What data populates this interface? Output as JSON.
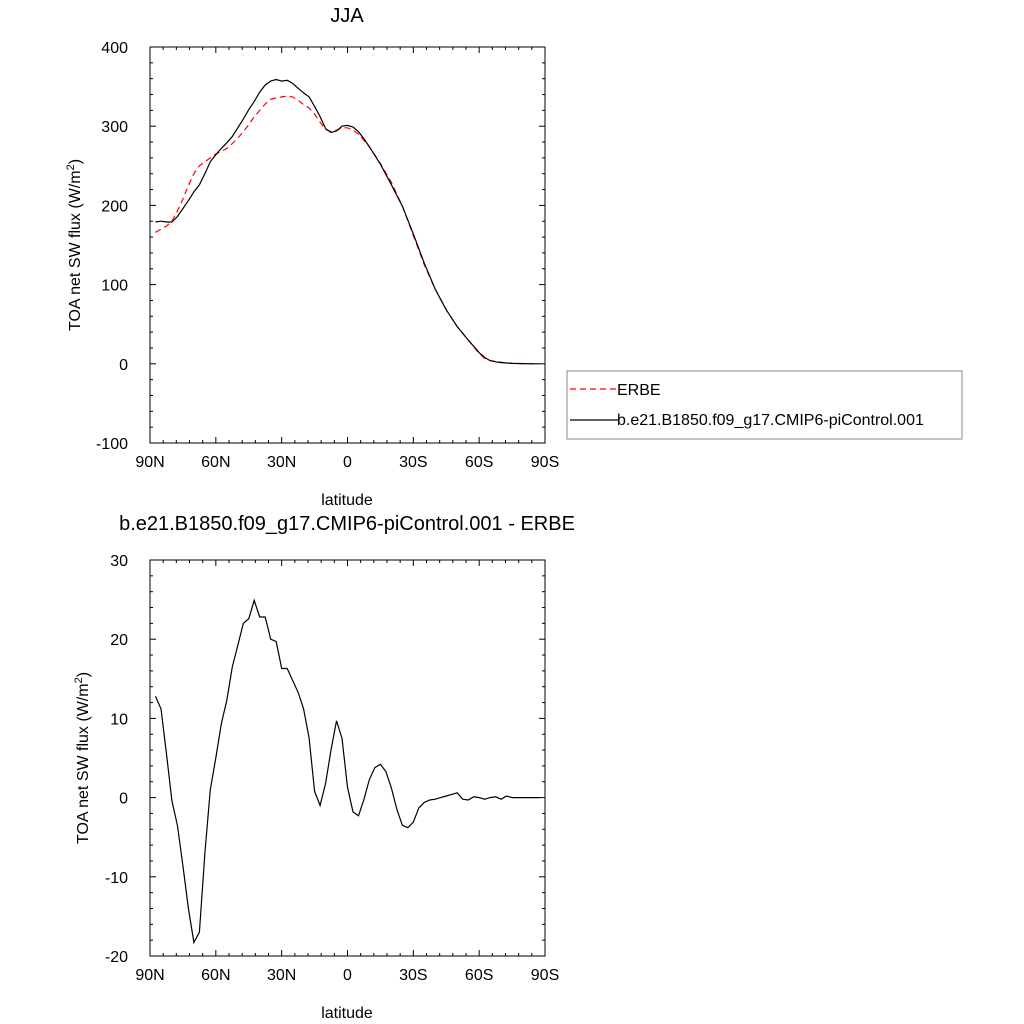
{
  "chart_data": [
    {
      "type": "line",
      "title": "JJA",
      "xlabel": "latitude",
      "ylabel": "TOA net SW flux (W/m",
      "ylabel_sup": "2",
      "ylabel_close": ")",
      "xlim": [
        90,
        -90
      ],
      "ylim": [
        -100,
        400
      ],
      "x_ticks": [
        90,
        60,
        30,
        0,
        -30,
        -60,
        -90
      ],
      "x_tick_labels": [
        "90N",
        "60N",
        "30N",
        "0",
        "30S",
        "60S",
        "90S"
      ],
      "y_ticks": [
        -100,
        0,
        100,
        200,
        300,
        400
      ],
      "y_tick_labels": [
        "-100",
        "0",
        "100",
        "200",
        "300",
        "400"
      ],
      "legend_position": "right",
      "series": [
        {
          "name": "ERBE",
          "color": "#ff0000",
          "dash": "dashed",
          "x": [
            87.5,
            85,
            82.5,
            80,
            77.5,
            75,
            72.5,
            70,
            67.5,
            65,
            62.5,
            60,
            57.5,
            55,
            52.5,
            50,
            47.5,
            45,
            42.5,
            40,
            37.5,
            35,
            32.5,
            30,
            27.5,
            25,
            22.5,
            20,
            17.5,
            15,
            12.5,
            10,
            7.5,
            5,
            2.5,
            0,
            -2.5,
            -5,
            -7.5,
            -10,
            -15,
            -20,
            -25,
            -30,
            -35,
            -40,
            -45,
            -50,
            -55,
            -60,
            -62.5,
            -65,
            -67.5,
            -70,
            -72.5,
            -75,
            -80,
            -85,
            -87.5
          ],
          "values": [
            166,
            170,
            174,
            180,
            193,
            208,
            225,
            240,
            250,
            255,
            260,
            265,
            268,
            272,
            278,
            285,
            293,
            302,
            312,
            320,
            328,
            334,
            336,
            337,
            338,
            337,
            333,
            327,
            323,
            315,
            305,
            296,
            293,
            295,
            298,
            298,
            295,
            290,
            282,
            274,
            253,
            229,
            199,
            162,
            125,
            94,
            68,
            47,
            30,
            13,
            7,
            4,
            3,
            2,
            1,
            0.5,
            0.2,
            0,
            0
          ]
        },
        {
          "name": "b.e21.B1850.f09_g17.CMIP6-piControl.001",
          "color": "#000000",
          "dash": "solid",
          "x": [
            87.5,
            85,
            82.5,
            80,
            77.5,
            75,
            72.5,
            70,
            67.5,
            65,
            62.5,
            60,
            57.5,
            55,
            52.5,
            50,
            47.5,
            45,
            42.5,
            40,
            37.5,
            35,
            32.5,
            30,
            27.5,
            25,
            22.5,
            20,
            17.5,
            15,
            12.5,
            10,
            7.5,
            5,
            2.5,
            0,
            -2.5,
            -5,
            -7.5,
            -10,
            -15,
            -20,
            -25,
            -30,
            -35,
            -40,
            -45,
            -50,
            -55,
            -60,
            -62.5,
            -65,
            -67.5,
            -70,
            -72.5,
            -75,
            -80,
            -85,
            -87.5
          ],
          "values": [
            179,
            180,
            179,
            179,
            186,
            196,
            206,
            217,
            226,
            240,
            255,
            264,
            272,
            279,
            287,
            298,
            309,
            321,
            331,
            343,
            352,
            357,
            359,
            357,
            358,
            354,
            348,
            342,
            337,
            325,
            312,
            297,
            292,
            294,
            300,
            301,
            299,
            293,
            284,
            274,
            252,
            226,
            199,
            164,
            127,
            94,
            68,
            47,
            30,
            14,
            8,
            4,
            2.5,
            1.5,
            1,
            0.5,
            0.2,
            0,
            0
          ]
        }
      ]
    },
    {
      "type": "line",
      "title": "b.e21.B1850.f09_g17.CMIP6-piControl.001 - ERBE",
      "xlabel": "latitude",
      "ylabel": "TOA net SW flux (W/m",
      "ylabel_sup": "2",
      "ylabel_close": ")",
      "xlim": [
        90,
        -90
      ],
      "ylim": [
        -20,
        30
      ],
      "x_ticks": [
        90,
        60,
        30,
        0,
        -30,
        -60,
        -90
      ],
      "x_tick_labels": [
        "90N",
        "60N",
        "30N",
        "0",
        "30S",
        "60S",
        "90S"
      ],
      "y_ticks": [
        -20,
        -10,
        0,
        10,
        20,
        30
      ],
      "y_tick_labels": [
        "-20",
        "-10",
        "0",
        "10",
        "20",
        "30"
      ],
      "series": [
        {
          "color": "#000000",
          "dash": "solid",
          "x": [
            87.5,
            85,
            82.5,
            80,
            77.5,
            75,
            72.5,
            70,
            67.5,
            65,
            62.5,
            60,
            57.5,
            55,
            52.5,
            50,
            47.5,
            45,
            42.5,
            40,
            37.5,
            35,
            32.5,
            30,
            27.5,
            25,
            22.5,
            20,
            17.5,
            15,
            12.5,
            10,
            7.5,
            5,
            2.5,
            0,
            -2.5,
            -5,
            -7.5,
            -10,
            -12.5,
            -15,
            -17.5,
            -20,
            -22.5,
            -25,
            -27.5,
            -30,
            -32.5,
            -35,
            -37.5,
            -40,
            -42.5,
            -45,
            -47.5,
            -50,
            -52.5,
            -55,
            -57.5,
            -60,
            -62.5,
            -65,
            -67.5,
            -70,
            -72.5,
            -75,
            -77.5,
            -80,
            -82.5,
            -85,
            -87.5
          ],
          "values": [
            12.8,
            11.2,
            5.5,
            -0.4,
            -3.5,
            -8.6,
            -14,
            -18.3,
            -17,
            -7,
            1,
            5,
            9.3,
            12.3,
            16.5,
            19.2,
            22,
            22.6,
            24.9,
            22.8,
            22.8,
            20,
            19.7,
            16.3,
            16.3,
            14.8,
            13.3,
            11.2,
            7.5,
            0.8,
            -1,
            1.8,
            6,
            9.7,
            7.5,
            1.3,
            -1.8,
            -2.3,
            -0.2,
            2.3,
            3.8,
            4.2,
            3.3,
            1.2,
            -1.5,
            -3.5,
            -3.8,
            -3.1,
            -1.3,
            -0.6,
            -0.3,
            -0.2,
            0,
            0.2,
            0.4,
            0.6,
            -0.2,
            -0.3,
            0.1,
            0,
            -0.2,
            0,
            0.1,
            -0.2,
            0.2,
            0,
            0,
            0,
            0,
            0,
            0
          ]
        }
      ]
    }
  ]
}
